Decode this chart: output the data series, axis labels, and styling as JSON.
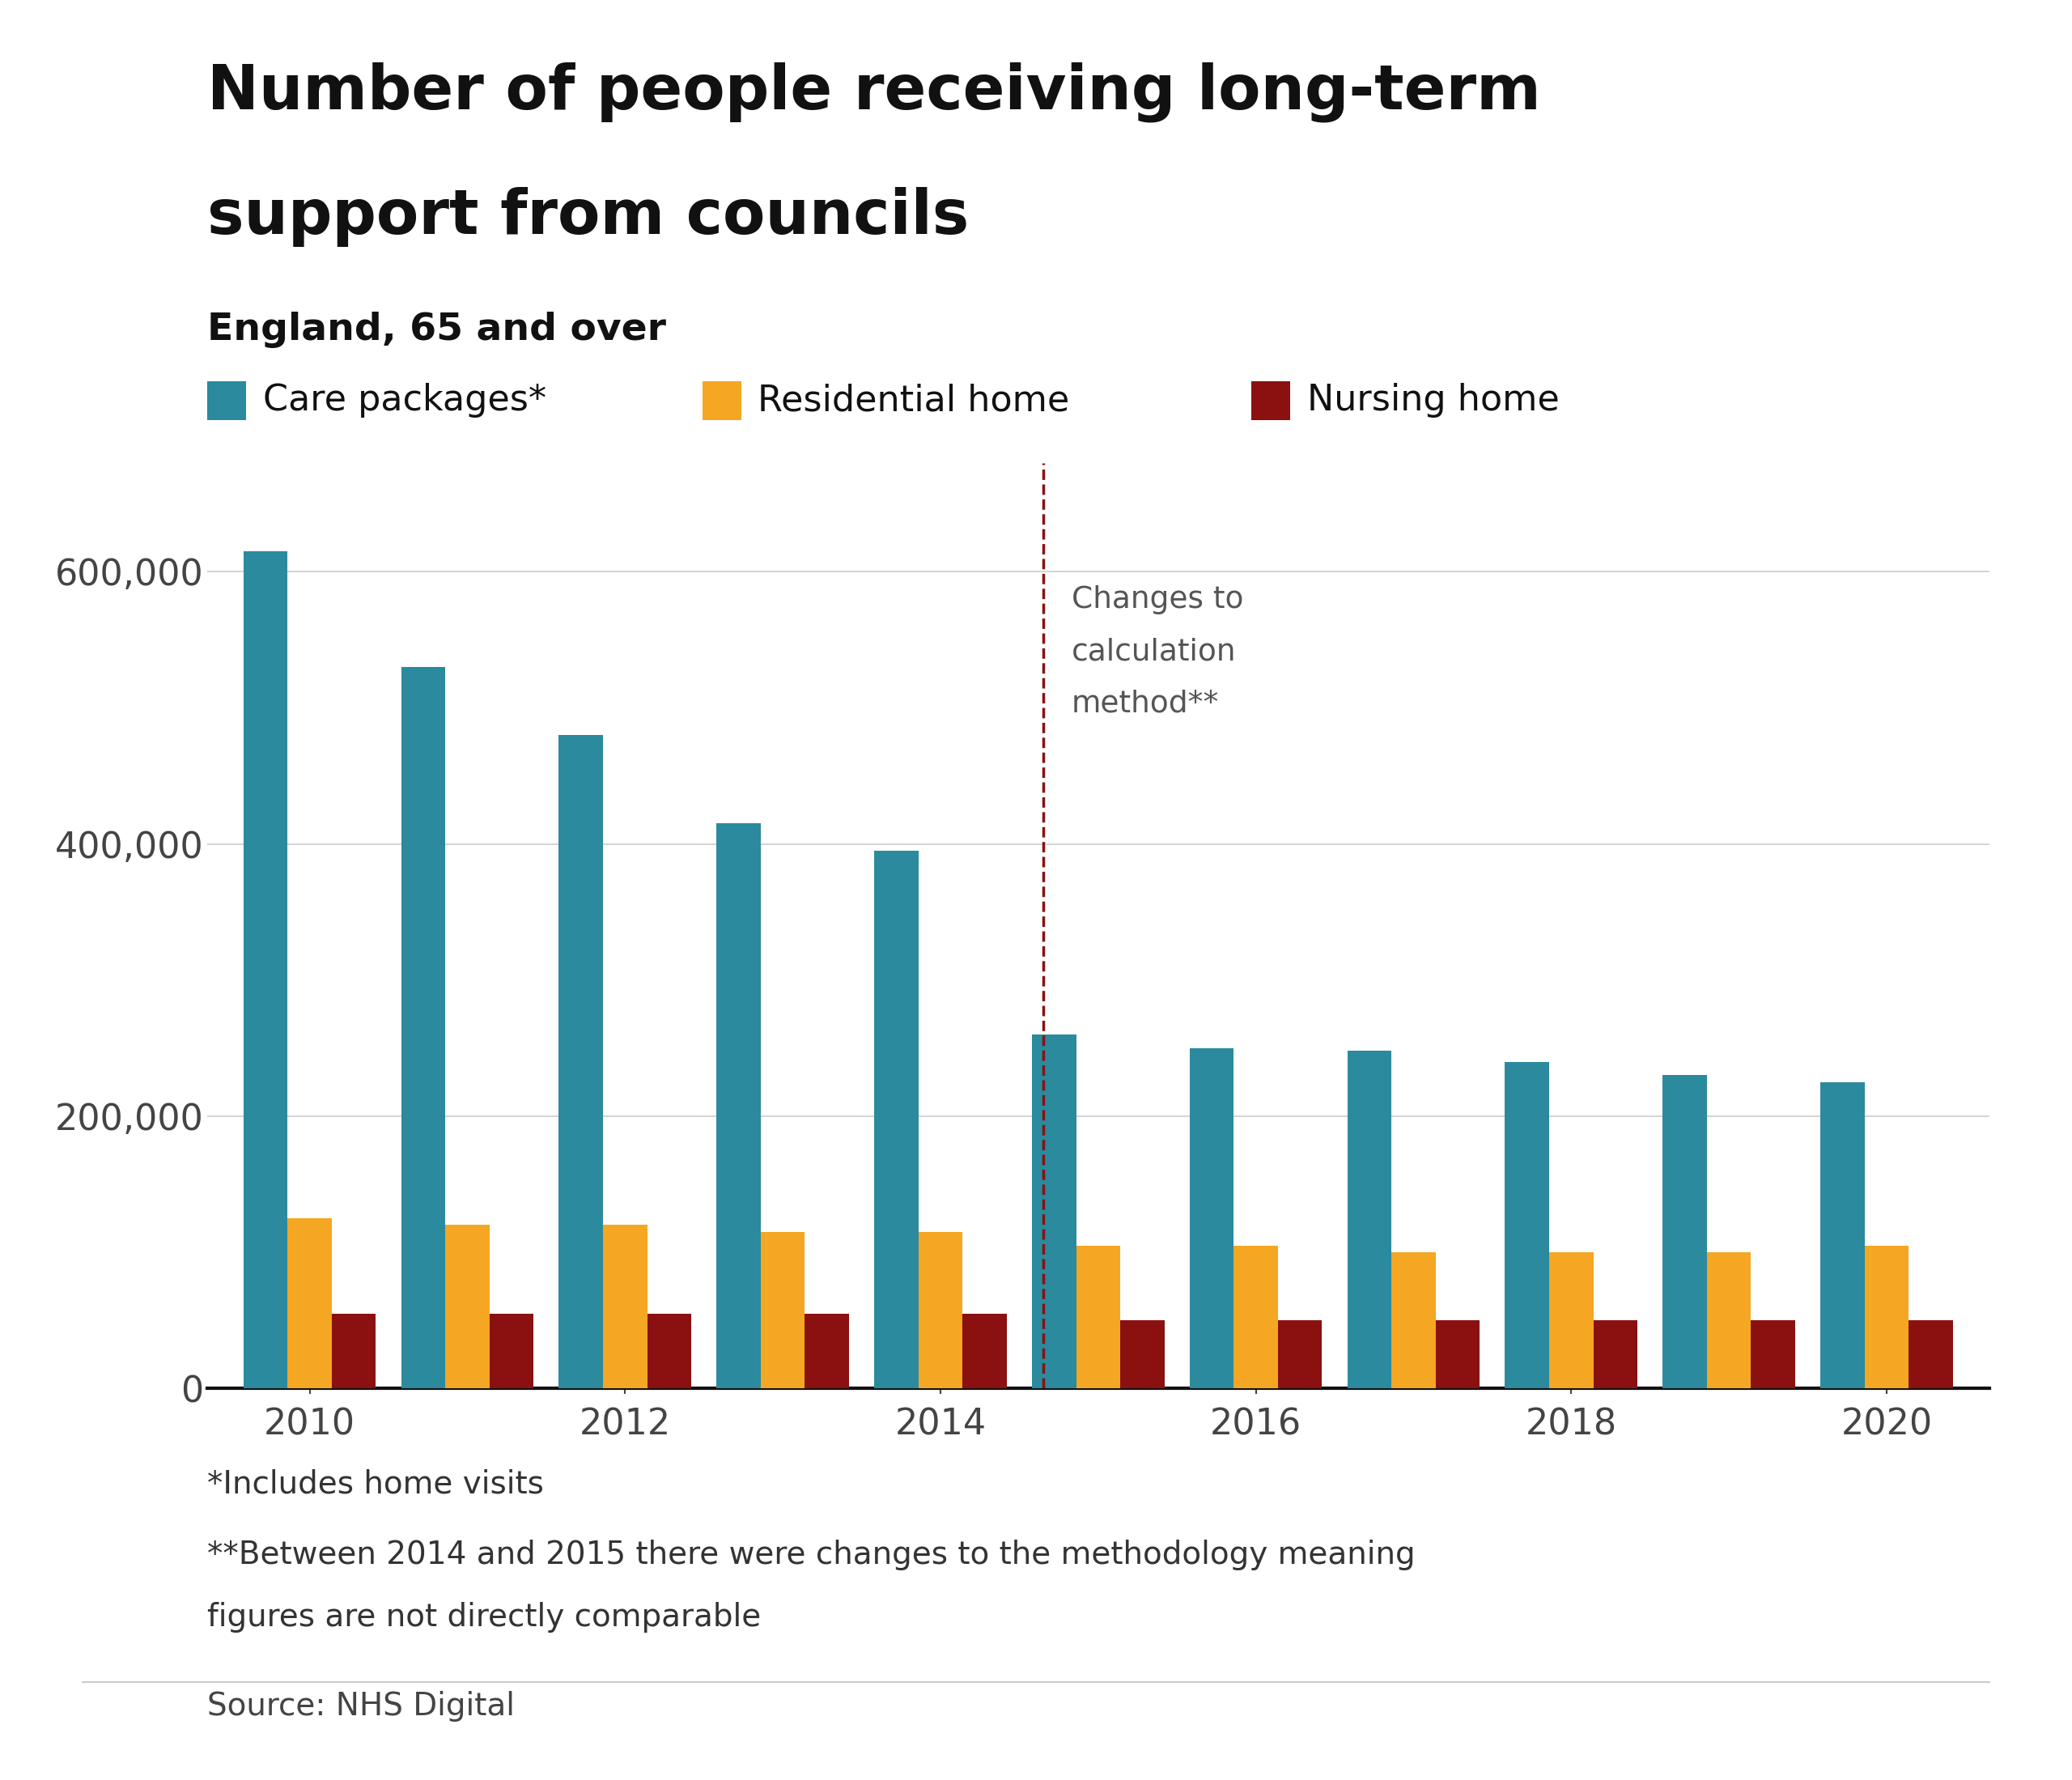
{
  "title_line1": "Number of people receiving long-term",
  "title_line2": "support from councils",
  "subtitle": "England, 65 and over",
  "care_packages": [
    615000,
    530000,
    480000,
    415000,
    395000,
    260000,
    250000,
    248000,
    240000,
    230000,
    225000
  ],
  "residential_home": [
    125000,
    120000,
    120000,
    115000,
    115000,
    105000,
    105000,
    100000,
    100000,
    100000,
    105000
  ],
  "nursing_home": [
    55000,
    55000,
    55000,
    55000,
    55000,
    50000,
    50000,
    50000,
    50000,
    50000,
    50000
  ],
  "care_color": "#2b8a9e",
  "residential_color": "#f5a623",
  "nursing_color": "#8b1010",
  "dashed_color": "#8b1010",
  "annotation_text": "Changes to\ncalculation\nmethod**",
  "footnote1": "*Includes home visits",
  "footnote2": "**Between 2014 and 2015 there were changes to the methodology meaning",
  "footnote3": "figures are not directly comparable",
  "source": "Source: NHS Digital",
  "ylim": [
    0,
    680000
  ],
  "yticks": [
    0,
    200000,
    400000,
    600000
  ],
  "bar_width": 0.28,
  "background_color": "#ffffff",
  "x_tick_labels": [
    "2010",
    "2012",
    "2014",
    "2016",
    "2018",
    "2020"
  ],
  "x_tick_positions": [
    0,
    2,
    4,
    6,
    8,
    10
  ]
}
